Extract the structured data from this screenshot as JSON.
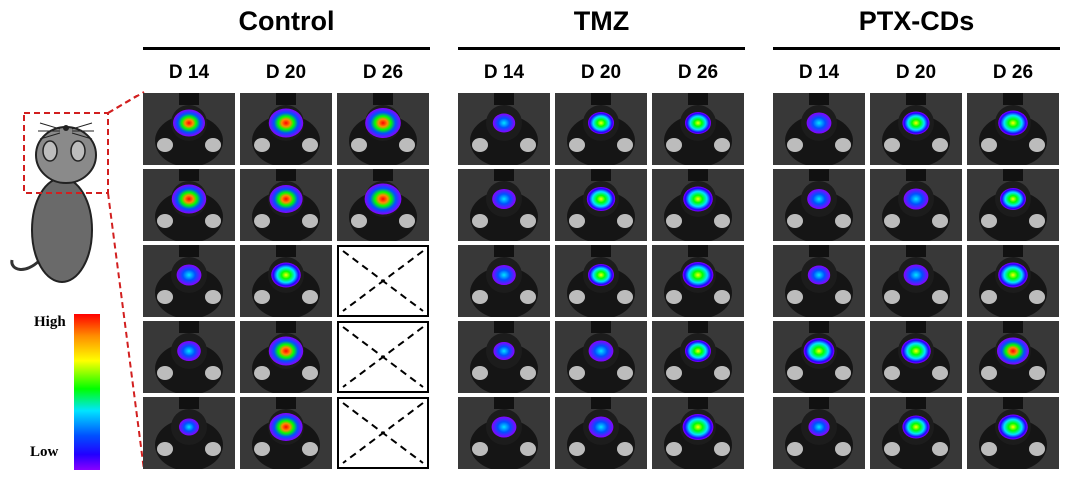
{
  "groups": [
    {
      "title": "Control",
      "days": [
        "D 14",
        "D 20",
        "D 26"
      ]
    },
    {
      "title": "TMZ",
      "days": [
        "D 14",
        "D 20",
        "D 26"
      ]
    },
    {
      "title": "PTX-CDs",
      "days": [
        "D 14",
        "D 20",
        "D 26"
      ]
    }
  ],
  "colorbar": {
    "high": "High",
    "low": "Low",
    "colors": [
      "#ff0000",
      "#ff8c00",
      "#ffff00",
      "#00ff00",
      "#00e5ff",
      "#0050ff",
      "#2200ff",
      "#8a00ff"
    ]
  },
  "mice_per_group": 5,
  "deceased_panels": [
    {
      "group": 0,
      "day": 2,
      "mouse": 2
    },
    {
      "group": 0,
      "day": 2,
      "mouse": 3
    },
    {
      "group": 0,
      "day": 2,
      "mouse": 4
    }
  ],
  "signal_intensity": [
    [
      [
        0.75,
        0.85,
        0.9
      ],
      [
        0.85,
        0.8,
        0.95
      ],
      [
        0.45,
        0.65,
        null
      ],
      [
        0.4,
        0.85,
        null
      ],
      [
        0.25,
        0.8,
        null
      ]
    ],
    [
      [
        0.35,
        0.5,
        0.5
      ],
      [
        0.4,
        0.6,
        0.65
      ],
      [
        0.4,
        0.5,
        0.7
      ],
      [
        0.3,
        0.45,
        0.5
      ],
      [
        0.45,
        0.45,
        0.7
      ]
    ],
    [
      [
        0.45,
        0.55,
        0.65
      ],
      [
        0.4,
        0.45,
        0.5
      ],
      [
        0.35,
        0.45,
        0.65
      ],
      [
        0.7,
        0.65,
        0.75
      ],
      [
        0.3,
        0.55,
        0.65
      ]
    ]
  ]
}
